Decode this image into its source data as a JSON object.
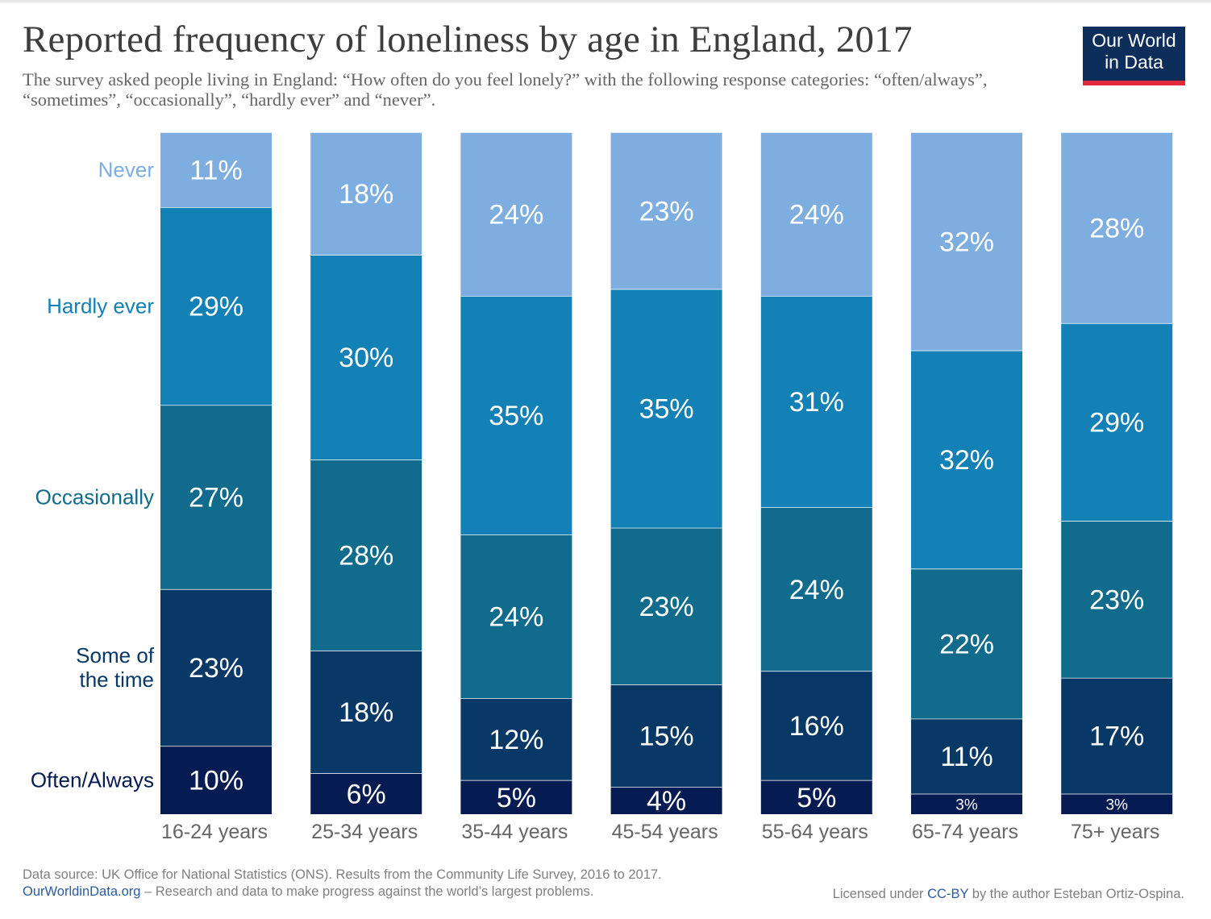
{
  "header": {
    "title": "Reported frequency of loneliness by age in England, 2017",
    "subtitle": "The survey asked people living in England: “How often do you feel lonely?” with the following response categories: “often/always”, “sometimes”, “occasionally”, “hardly ever” and “never”."
  },
  "logo": {
    "line1": "Our World",
    "line2": "in Data"
  },
  "footer": {
    "source": "Data source: UK Office for National Statistics (ONS). Results from the Community Life Survey, 2016 to 2017.",
    "site": "OurWorldinData.org",
    "tagline": " – Research and data to make progress against the world’s largest problems.",
    "license_prefix": "Licensed under ",
    "license_link": "CC-BY",
    "license_suffix": " by the author Esteban Ortiz-Ospina."
  },
  "colors": {
    "Never": "#7eaedf",
    "Hardly ever": "#1380b6",
    "Occasionally": "#106b8c",
    "Some of the time": "#083866",
    "Often/Always": "#061b52"
  },
  "chart_data": {
    "type": "bar",
    "stacked": true,
    "categories": [
      "16-24 years",
      "25-34 years",
      "35-44 years",
      "45-54 years",
      "55-64 years",
      "65-74 years",
      "75+ years"
    ],
    "series": [
      {
        "name": "Often/Always",
        "values": [
          10,
          6,
          5,
          4,
          5,
          3,
          3
        ]
      },
      {
        "name": "Some of the time",
        "values": [
          23,
          18,
          12,
          15,
          16,
          11,
          17
        ]
      },
      {
        "name": "Occasionally",
        "values": [
          27,
          28,
          24,
          23,
          24,
          22,
          23
        ]
      },
      {
        "name": "Hardly ever",
        "values": [
          29,
          30,
          35,
          35,
          31,
          32,
          29
        ]
      },
      {
        "name": "Never",
        "values": [
          11,
          18,
          24,
          23,
          24,
          32,
          28
        ]
      }
    ],
    "series_label_lines": [
      [
        "Often/Always"
      ],
      [
        "Some of",
        "the time"
      ],
      [
        "Occasionally"
      ],
      [
        "Hardly ever"
      ],
      [
        "Never"
      ]
    ],
    "value_suffix": "%",
    "legend": "left"
  }
}
